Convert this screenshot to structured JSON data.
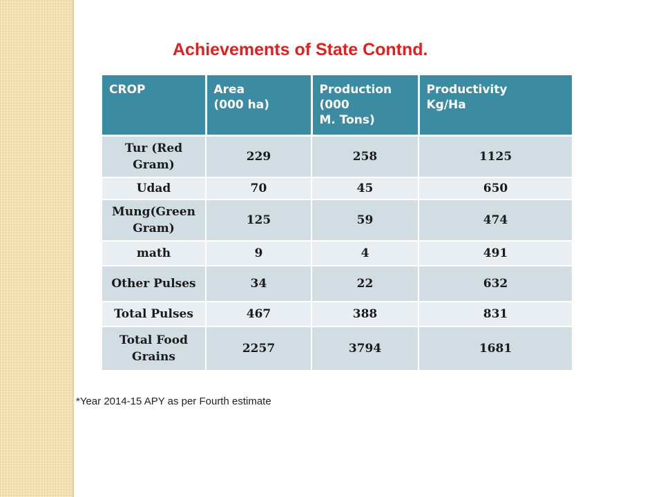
{
  "title": "Achievements of State Contnd.",
  "table": {
    "headers": [
      {
        "line1": "CROP",
        "line2": "",
        "line3": ""
      },
      {
        "line1": "Area",
        "line2": "(000 ha)",
        "line3": ""
      },
      {
        "line1": "Production",
        "line2": "(000",
        "line3": "M. Tons)"
      },
      {
        "line1": "Productivity",
        "line2": "Kg/Ha",
        "line3": ""
      }
    ],
    "rows": [
      {
        "crop": "Tur (Red Gram)",
        "area": "229",
        "production": "258",
        "productivity": "1125"
      },
      {
        "crop": "Udad",
        "area": "70",
        "production": "45",
        "productivity": "650"
      },
      {
        "crop": "Mung(Green Gram)",
        "area": "125",
        "production": "59",
        "productivity": "474"
      },
      {
        "crop": "math",
        "area": "9",
        "production": "4",
        "productivity": "491"
      },
      {
        "crop": "Other Pulses",
        "area": "34",
        "production": "22",
        "productivity": "632"
      },
      {
        "crop": "Total Pulses",
        "area": "467",
        "production": "388",
        "productivity": "831"
      },
      {
        "crop": "Total Food Grains",
        "area": "2257",
        "production": "3794",
        "productivity": "1681"
      }
    ]
  },
  "footnote": "*Year 2014-15 APY as per Fourth estimate",
  "colors": {
    "title": "#e02020",
    "header_bg": "#3b8ca3",
    "row_dark": "#d1dde3",
    "row_light": "#e8eef2",
    "side_band": "#f2dfb4"
  }
}
